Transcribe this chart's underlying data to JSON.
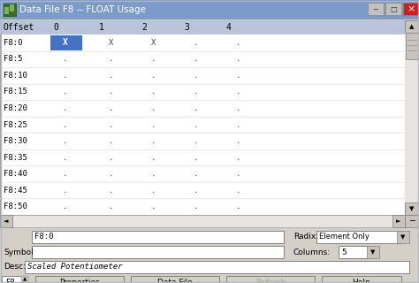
{
  "title": "Data File F8 -- FLOAT Usage",
  "window_bg": "#D4D0C8",
  "table_bg": "#FFFFFF",
  "table_header_bg": "#B8C4D8",
  "selected_cell_bg": "#4472C4",
  "selected_cell_text": "#FFFFFF",
  "titlebar_bg": "#7B9BC8",
  "titlebar_text_color": "#FFFFFF",
  "row_labels": [
    "F8:0",
    "F8:5",
    "F8:10",
    "F8:15",
    "F8:20",
    "F8:25",
    "F8:30",
    "F8:35",
    "F8:40",
    "F8:45",
    "F8:50"
  ],
  "col_labels": [
    "Offset",
    "0",
    "1",
    "2",
    "3",
    "4"
  ],
  "data": [
    [
      "X",
      "X",
      "X",
      ".",
      "."
    ],
    [
      ".",
      ".",
      ".",
      ".",
      "."
    ],
    [
      ".",
      ".",
      ".",
      ".",
      "."
    ],
    [
      ".",
      ".",
      ".",
      ".",
      "."
    ],
    [
      ".",
      ".",
      ".",
      ".",
      "."
    ],
    [
      ".",
      ".",
      ".",
      ".",
      "."
    ],
    [
      ".",
      ".",
      ".",
      ".",
      "."
    ],
    [
      ".",
      ".",
      ".",
      ".",
      "."
    ],
    [
      ".",
      ".",
      ".",
      ".",
      "."
    ],
    [
      ".",
      ".",
      ".",
      ".",
      "."
    ],
    [
      ".",
      ".",
      ".",
      ".",
      "."
    ]
  ],
  "highlighted_cell": [
    0,
    0
  ],
  "field_f8": "F8:0",
  "field_symbol": "",
  "field_desc": "Scaled Potentiometer",
  "label_radix": "Radix:",
  "label_columns": "Columns:",
  "radix_value": "Element Only",
  "columns_value": "5",
  "btn_properties": "Properties",
  "btn_data_file": "Data File",
  "btn_refresh": "Refresh",
  "btn_help": "Help",
  "label_symbol": "Symbol",
  "label_desc": "Desc:",
  "label_f8": "F8",
  "scrollbar_bg": "#E8E8E8",
  "scrollbar_thumb": "#C8C8C8",
  "btn_bg": "#D4D0C8",
  "border_color": "#808080",
  "mono_font": "monospace"
}
